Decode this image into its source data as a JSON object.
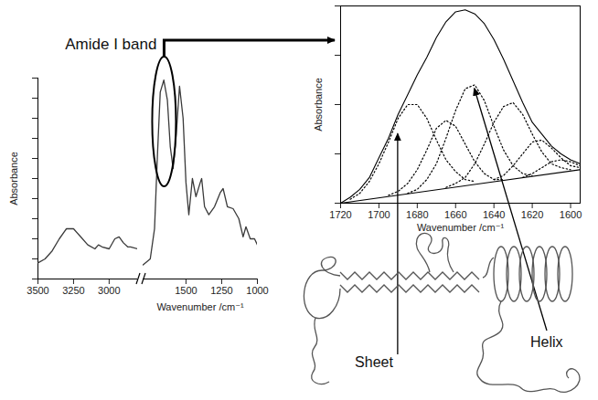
{
  "chart_data": [
    {
      "type": "line",
      "ylabel": "Absorbance",
      "xlim": [
        3500,
        2800
      ],
      "xticks": [
        3500,
        3250,
        3000
      ],
      "ylim": [
        0,
        1
      ],
      "yticks": [
        0,
        0.1,
        0.2,
        0.3,
        0.4,
        0.5,
        0.6,
        0.7,
        0.8,
        0.9,
        1
      ],
      "tick_labels": "x",
      "color": "#3a3a3a",
      "x": [
        3500,
        3450,
        3400,
        3350,
        3300,
        3250,
        3200,
        3150,
        3100,
        3075,
        3050,
        3000,
        2960,
        2930,
        2900,
        2870,
        2850,
        2800
      ],
      "values": [
        0.08,
        0.1,
        0.14,
        0.2,
        0.25,
        0.25,
        0.21,
        0.17,
        0.15,
        0.17,
        0.16,
        0.15,
        0.2,
        0.21,
        0.18,
        0.16,
        0.16,
        0.15
      ]
    },
    {
      "type": "line",
      "xlabel": "Wavenumber /cm⁻¹",
      "xlim": [
        1800,
        1000
      ],
      "xticks": [
        1500,
        1250,
        1000
      ],
      "ylim": [
        0,
        1
      ],
      "tick_labels": "x",
      "color": "#3a3a3a",
      "annotations": [
        {
          "text": "Amide I band",
          "x": 1650
        }
      ],
      "x": [
        1800,
        1750,
        1720,
        1700,
        1680,
        1655,
        1630,
        1610,
        1590,
        1570,
        1545,
        1520,
        1500,
        1480,
        1455,
        1430,
        1400,
        1390,
        1370,
        1340,
        1300,
        1260,
        1240,
        1210,
        1170,
        1130,
        1100,
        1080,
        1050,
        1020,
        1000
      ],
      "values": [
        0.07,
        0.1,
        0.25,
        0.61,
        0.93,
        0.99,
        0.89,
        0.66,
        0.55,
        0.7,
        0.96,
        0.8,
        0.48,
        0.32,
        0.5,
        0.41,
        0.48,
        0.5,
        0.36,
        0.32,
        0.36,
        0.43,
        0.45,
        0.36,
        0.35,
        0.3,
        0.21,
        0.26,
        0.2,
        0.2,
        0.17
      ]
    },
    {
      "type": "line",
      "xlabel": "Wavenumber /cm⁻¹",
      "ylabel": "Absorbance",
      "xlim": [
        1720,
        1595
      ],
      "xticks": [
        1720,
        1700,
        1680,
        1660,
        1640,
        1620,
        1600
      ],
      "ylim": [
        0,
        1
      ],
      "yticks": [
        0,
        0.25,
        0.5,
        0.75,
        1
      ],
      "tick_labels": "x",
      "annotations": [
        {
          "text": "Sheet",
          "x": 1690,
          "y": 0.36
        },
        {
          "text": "Helix",
          "x": 1650,
          "y": 0.58
        }
      ],
      "series": [
        {
          "color": "#000000",
          "line_style": "solid",
          "x": [
            1720,
            1715,
            1710,
            1705,
            1700,
            1695,
            1690,
            1685,
            1680,
            1675,
            1670,
            1665,
            1660,
            1655,
            1650,
            1645,
            1640,
            1635,
            1630,
            1625,
            1620,
            1615,
            1610,
            1605,
            1600,
            1595
          ],
          "values": [
            0.0,
            0.03,
            0.07,
            0.13,
            0.23,
            0.33,
            0.45,
            0.55,
            0.65,
            0.74,
            0.84,
            0.92,
            0.97,
            0.98,
            0.96,
            0.91,
            0.83,
            0.73,
            0.62,
            0.51,
            0.41,
            0.35,
            0.29,
            0.25,
            0.22,
            0.2
          ]
        },
        {
          "color": "#000000",
          "line_style": "solid",
          "x": [
            1720,
            1595
          ],
          "values": [
            0,
            0.17
          ]
        },
        {
          "color": "#000000",
          "line_style": "dotted",
          "x": [
            1715,
            1710,
            1705,
            1700,
            1695,
            1690,
            1685,
            1680,
            1675,
            1670,
            1665,
            1660,
            1655,
            1650
          ],
          "values": [
            0.02,
            0.05,
            0.11,
            0.2,
            0.31,
            0.43,
            0.5,
            0.5,
            0.43,
            0.32,
            0.22,
            0.16,
            0.12,
            0.11
          ]
        },
        {
          "color": "#000000",
          "line_style": "dotted",
          "x": [
            1695,
            1690,
            1685,
            1680,
            1675,
            1670,
            1665,
            1660,
            1655,
            1650,
            1645,
            1640,
            1635
          ],
          "values": [
            0.04,
            0.06,
            0.1,
            0.17,
            0.27,
            0.38,
            0.42,
            0.39,
            0.3,
            0.21,
            0.15,
            0.12,
            0.12
          ]
        },
        {
          "color": "#000000",
          "line_style": "dotted",
          "x": [
            1685,
            1680,
            1675,
            1670,
            1665,
            1660,
            1655,
            1650,
            1645,
            1640,
            1635,
            1630,
            1625,
            1620
          ],
          "values": [
            0.05,
            0.07,
            0.12,
            0.2,
            0.33,
            0.47,
            0.58,
            0.6,
            0.52,
            0.39,
            0.27,
            0.19,
            0.15,
            0.14
          ]
        },
        {
          "color": "#000000",
          "line_style": "dotted",
          "x": [
            1665,
            1660,
            1655,
            1650,
            1645,
            1640,
            1635,
            1630,
            1625,
            1620,
            1615,
            1610,
            1605,
            1600
          ],
          "values": [
            0.08,
            0.1,
            0.13,
            0.2,
            0.3,
            0.41,
            0.49,
            0.51,
            0.45,
            0.35,
            0.26,
            0.2,
            0.18,
            0.17
          ]
        },
        {
          "color": "#000000",
          "line_style": "dotted",
          "x": [
            1640,
            1635,
            1630,
            1625,
            1620,
            1615,
            1610,
            1605,
            1600,
            1595
          ],
          "values": [
            0.12,
            0.14,
            0.19,
            0.25,
            0.31,
            0.32,
            0.28,
            0.23,
            0.19,
            0.18
          ]
        },
        {
          "color": "#000000",
          "line_style": "dotted",
          "x": [
            1625,
            1620,
            1615,
            1610,
            1605,
            1600,
            1595
          ],
          "values": [
            0.13,
            0.15,
            0.18,
            0.21,
            0.22,
            0.21,
            0.19
          ]
        }
      ]
    }
  ]
}
